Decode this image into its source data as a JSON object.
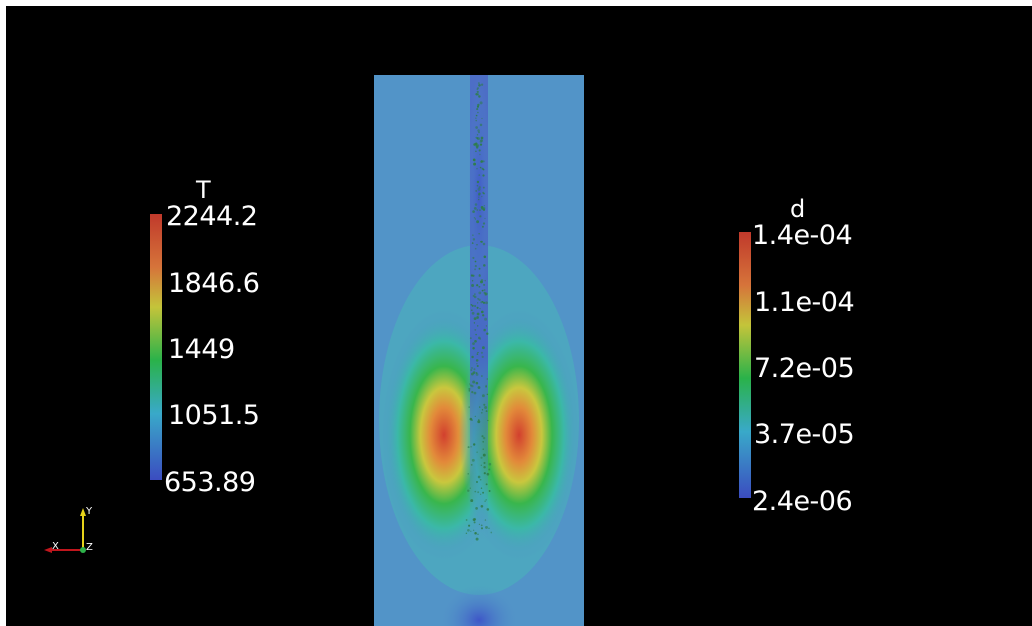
{
  "colorbar_T": {
    "title": "T",
    "labels": [
      "2244.2",
      "1846.6",
      "1449",
      "1051.5",
      "653.89"
    ]
  },
  "colorbar_d": {
    "title": "d",
    "labels": [
      "1.4e-04",
      "1.1e-04",
      "7.2e-05",
      "3.7e-05",
      "2.4e-06"
    ]
  },
  "axes": {
    "x": "X",
    "y": "Y",
    "z": "Z"
  },
  "colors": {
    "background": "#000000",
    "frame": "#ffffff",
    "domain_base": "#5294c8",
    "colormap": [
      "#3b4cc0",
      "#39a9c9",
      "#2ab24a",
      "#c4c43a",
      "#c0392b"
    ],
    "axis_x": "#c0161d",
    "axis_y": "#e6d21a",
    "axis_z": "#2db34a"
  }
}
